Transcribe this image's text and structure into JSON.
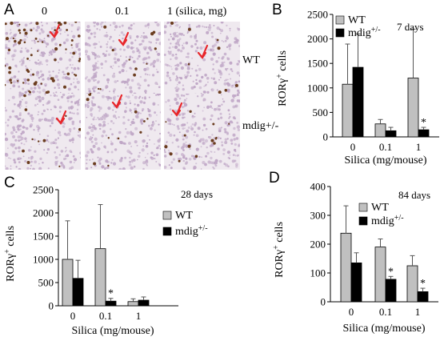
{
  "panels": {
    "a": {
      "letter": "A",
      "columns": [
        "0",
        "0.1",
        "1 (silica, mg)"
      ],
      "rows": [
        "WT",
        "mdig+/-"
      ],
      "colors": {
        "tissue": "#bfa6c6",
        "stain": "#6b3d1f",
        "arrow": "#e8262a",
        "bg": "#efe9ef"
      }
    },
    "b": {
      "letter": "B"
    },
    "c": {
      "letter": "C"
    },
    "d": {
      "letter": "D"
    }
  },
  "chart_data": [
    {
      "panel": "B",
      "type": "bar",
      "categories": [
        "0",
        "0.1",
        "1"
      ],
      "ticks": [
        "0",
        "500",
        "1000",
        "1500",
        "2000",
        "2500"
      ],
      "ylim": [
        0,
        2500
      ],
      "xlabel": "Silica (mg/mouse)",
      "ylabel_base": "RORγ",
      "ylabel_sup": "+",
      "ylabel_tail": " cells",
      "annotation": "7 days",
      "legend": [
        {
          "label": "WT",
          "sup": "",
          "color": "#c0c0c0"
        },
        {
          "label": "mdig",
          "sup": "+/-",
          "color": "#000000"
        }
      ],
      "series": [
        {
          "values": [
            1075,
            265,
            1200
          ],
          "errors": [
            820,
            90,
            1000
          ],
          "color": "#c0c0c0"
        },
        {
          "values": [
            1420,
            125,
            145
          ],
          "errors": [
            680,
            70,
            50
          ],
          "color": "#000000"
        }
      ],
      "significance": [
        "",
        "",
        "*"
      ]
    },
    {
      "panel": "C",
      "type": "bar",
      "categories": [
        "0",
        "0.1",
        "1"
      ],
      "ticks": [
        "0",
        "500",
        "1000",
        "1500",
        "2000",
        "2500"
      ],
      "ylim": [
        0,
        2500
      ],
      "xlabel": "Silica (mg/mouse)",
      "ylabel_base": "RORγ",
      "ylabel_sup": "+",
      "ylabel_tail": " cells",
      "annotation": "28 days",
      "legend": [
        {
          "label": "WT",
          "sup": "",
          "color": "#c0c0c0"
        },
        {
          "label": "mdig",
          "sup": "+/-",
          "color": "#000000"
        }
      ],
      "series": [
        {
          "values": [
            1000,
            1230,
            90
          ],
          "errors": [
            830,
            950,
            60
          ],
          "color": "#c0c0c0"
        },
        {
          "values": [
            590,
            100,
            120
          ],
          "errors": [
            390,
            60,
            70
          ],
          "color": "#000000"
        }
      ],
      "significance": [
        "",
        "*",
        ""
      ]
    },
    {
      "panel": "D",
      "type": "bar",
      "categories": [
        "0",
        "0.1",
        "1"
      ],
      "ticks": [
        "0",
        "100",
        "200",
        "300",
        "400"
      ],
      "ylim": [
        0,
        400
      ],
      "xlabel": "Silica (mg/mouse)",
      "ylabel_base": "RORγ",
      "ylabel_sup": "+",
      "ylabel_tail": " cells",
      "annotation": "84 days",
      "legend": [
        {
          "label": "WT",
          "sup": "",
          "color": "#c0c0c0"
        },
        {
          "label": "mdig",
          "sup": "+/-",
          "color": "#000000"
        }
      ],
      "series": [
        {
          "values": [
            238,
            190,
            125
          ],
          "errors": [
            95,
            28,
            35
          ],
          "color": "#c0c0c0"
        },
        {
          "values": [
            135,
            78,
            35
          ],
          "errors": [
            35,
            10,
            12
          ],
          "color": "#000000"
        }
      ],
      "significance": [
        "",
        "*",
        "*"
      ]
    }
  ]
}
